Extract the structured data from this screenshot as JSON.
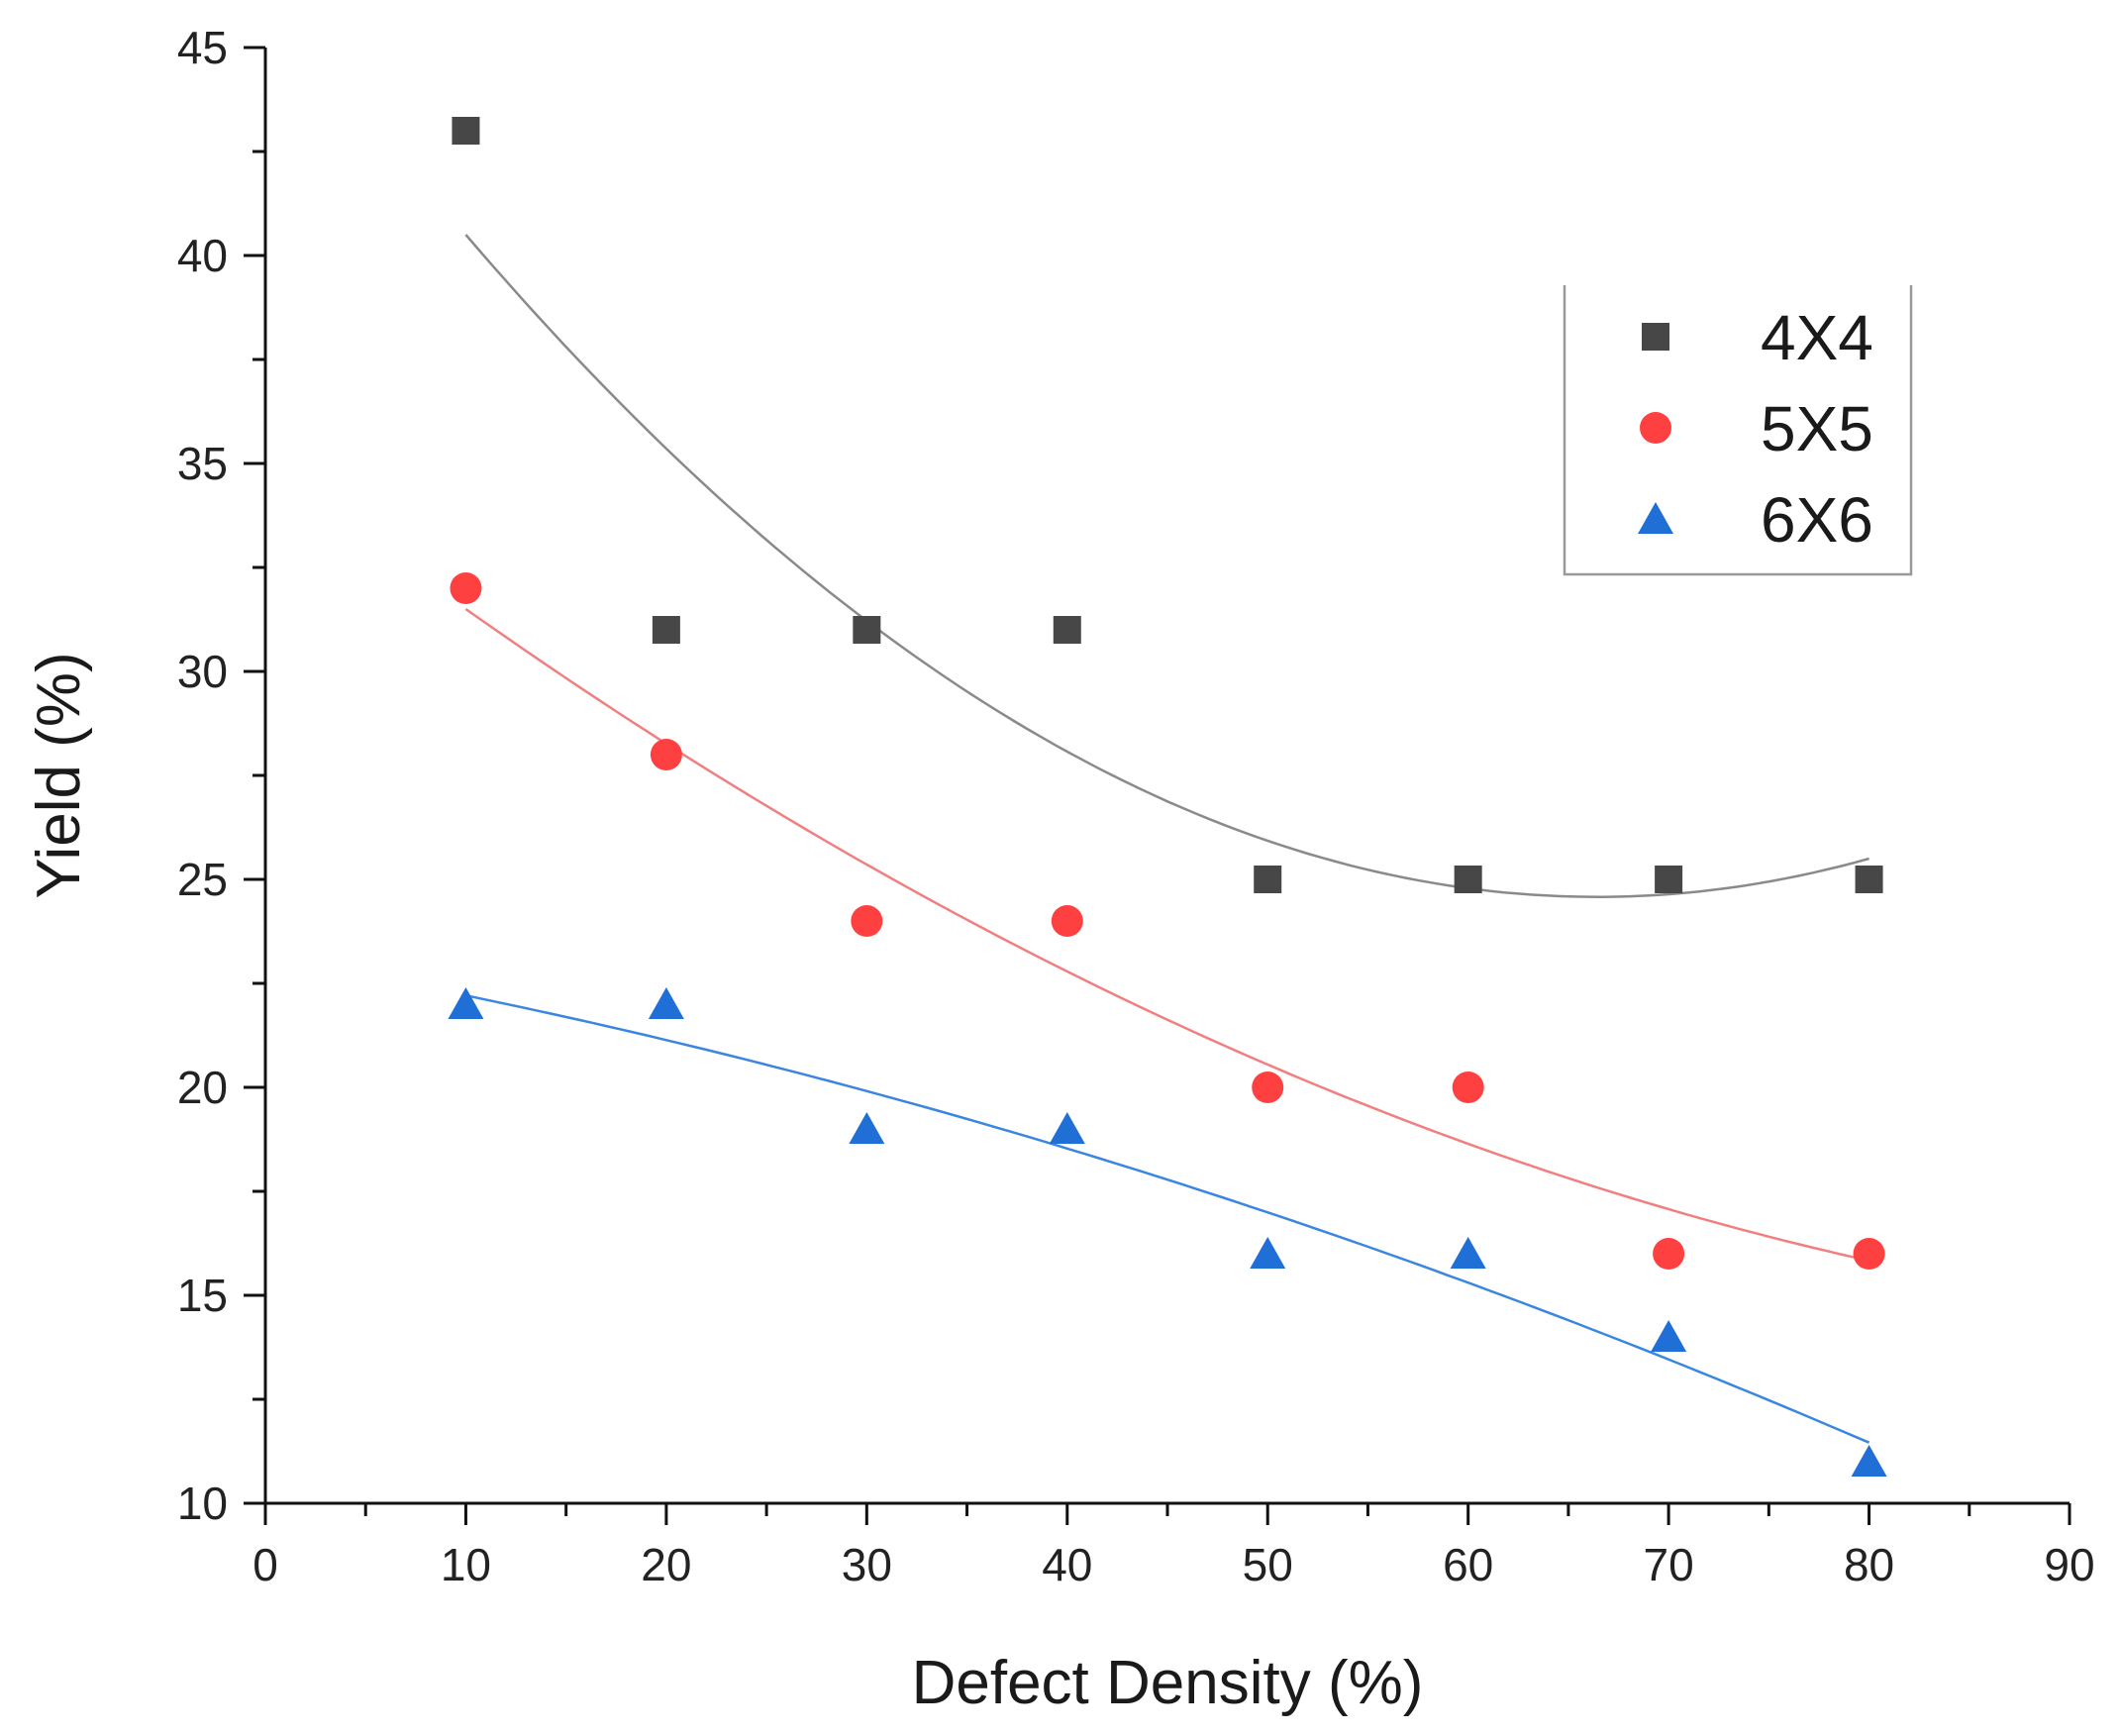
{
  "chart_data": {
    "type": "scatter",
    "title": "",
    "xlabel": "Defect Density (%)",
    "ylabel": "Yield (%)",
    "xlim": [
      0,
      90
    ],
    "ylim": [
      10,
      45
    ],
    "x_ticks": [
      0,
      10,
      20,
      30,
      40,
      50,
      60,
      70,
      80,
      90
    ],
    "y_ticks": [
      10,
      15,
      20,
      25,
      30,
      35,
      40,
      45
    ],
    "grid": false,
    "legend_position": "top-right",
    "x": [
      10,
      20,
      30,
      40,
      50,
      60,
      70,
      80
    ],
    "series": [
      {
        "name": "4X4",
        "marker": "square",
        "color": "#474747",
        "line_color": "#8a8a8a",
        "values": [
          43,
          31,
          31,
          31,
          25,
          25,
          25,
          25
        ],
        "fit": "quadratic"
      },
      {
        "name": "5X5",
        "marker": "circle",
        "color": "#ff4040",
        "line_color": "#f08080",
        "values": [
          32,
          28,
          24,
          24,
          20,
          20,
          16,
          16
        ],
        "fit": "quadratic"
      },
      {
        "name": "6X6",
        "marker": "triangle",
        "color": "#1f6fd6",
        "line_color": "#3a86e0",
        "values": [
          22,
          22,
          19,
          19,
          16,
          16,
          14,
          11
        ],
        "fit": "quadratic"
      }
    ]
  }
}
